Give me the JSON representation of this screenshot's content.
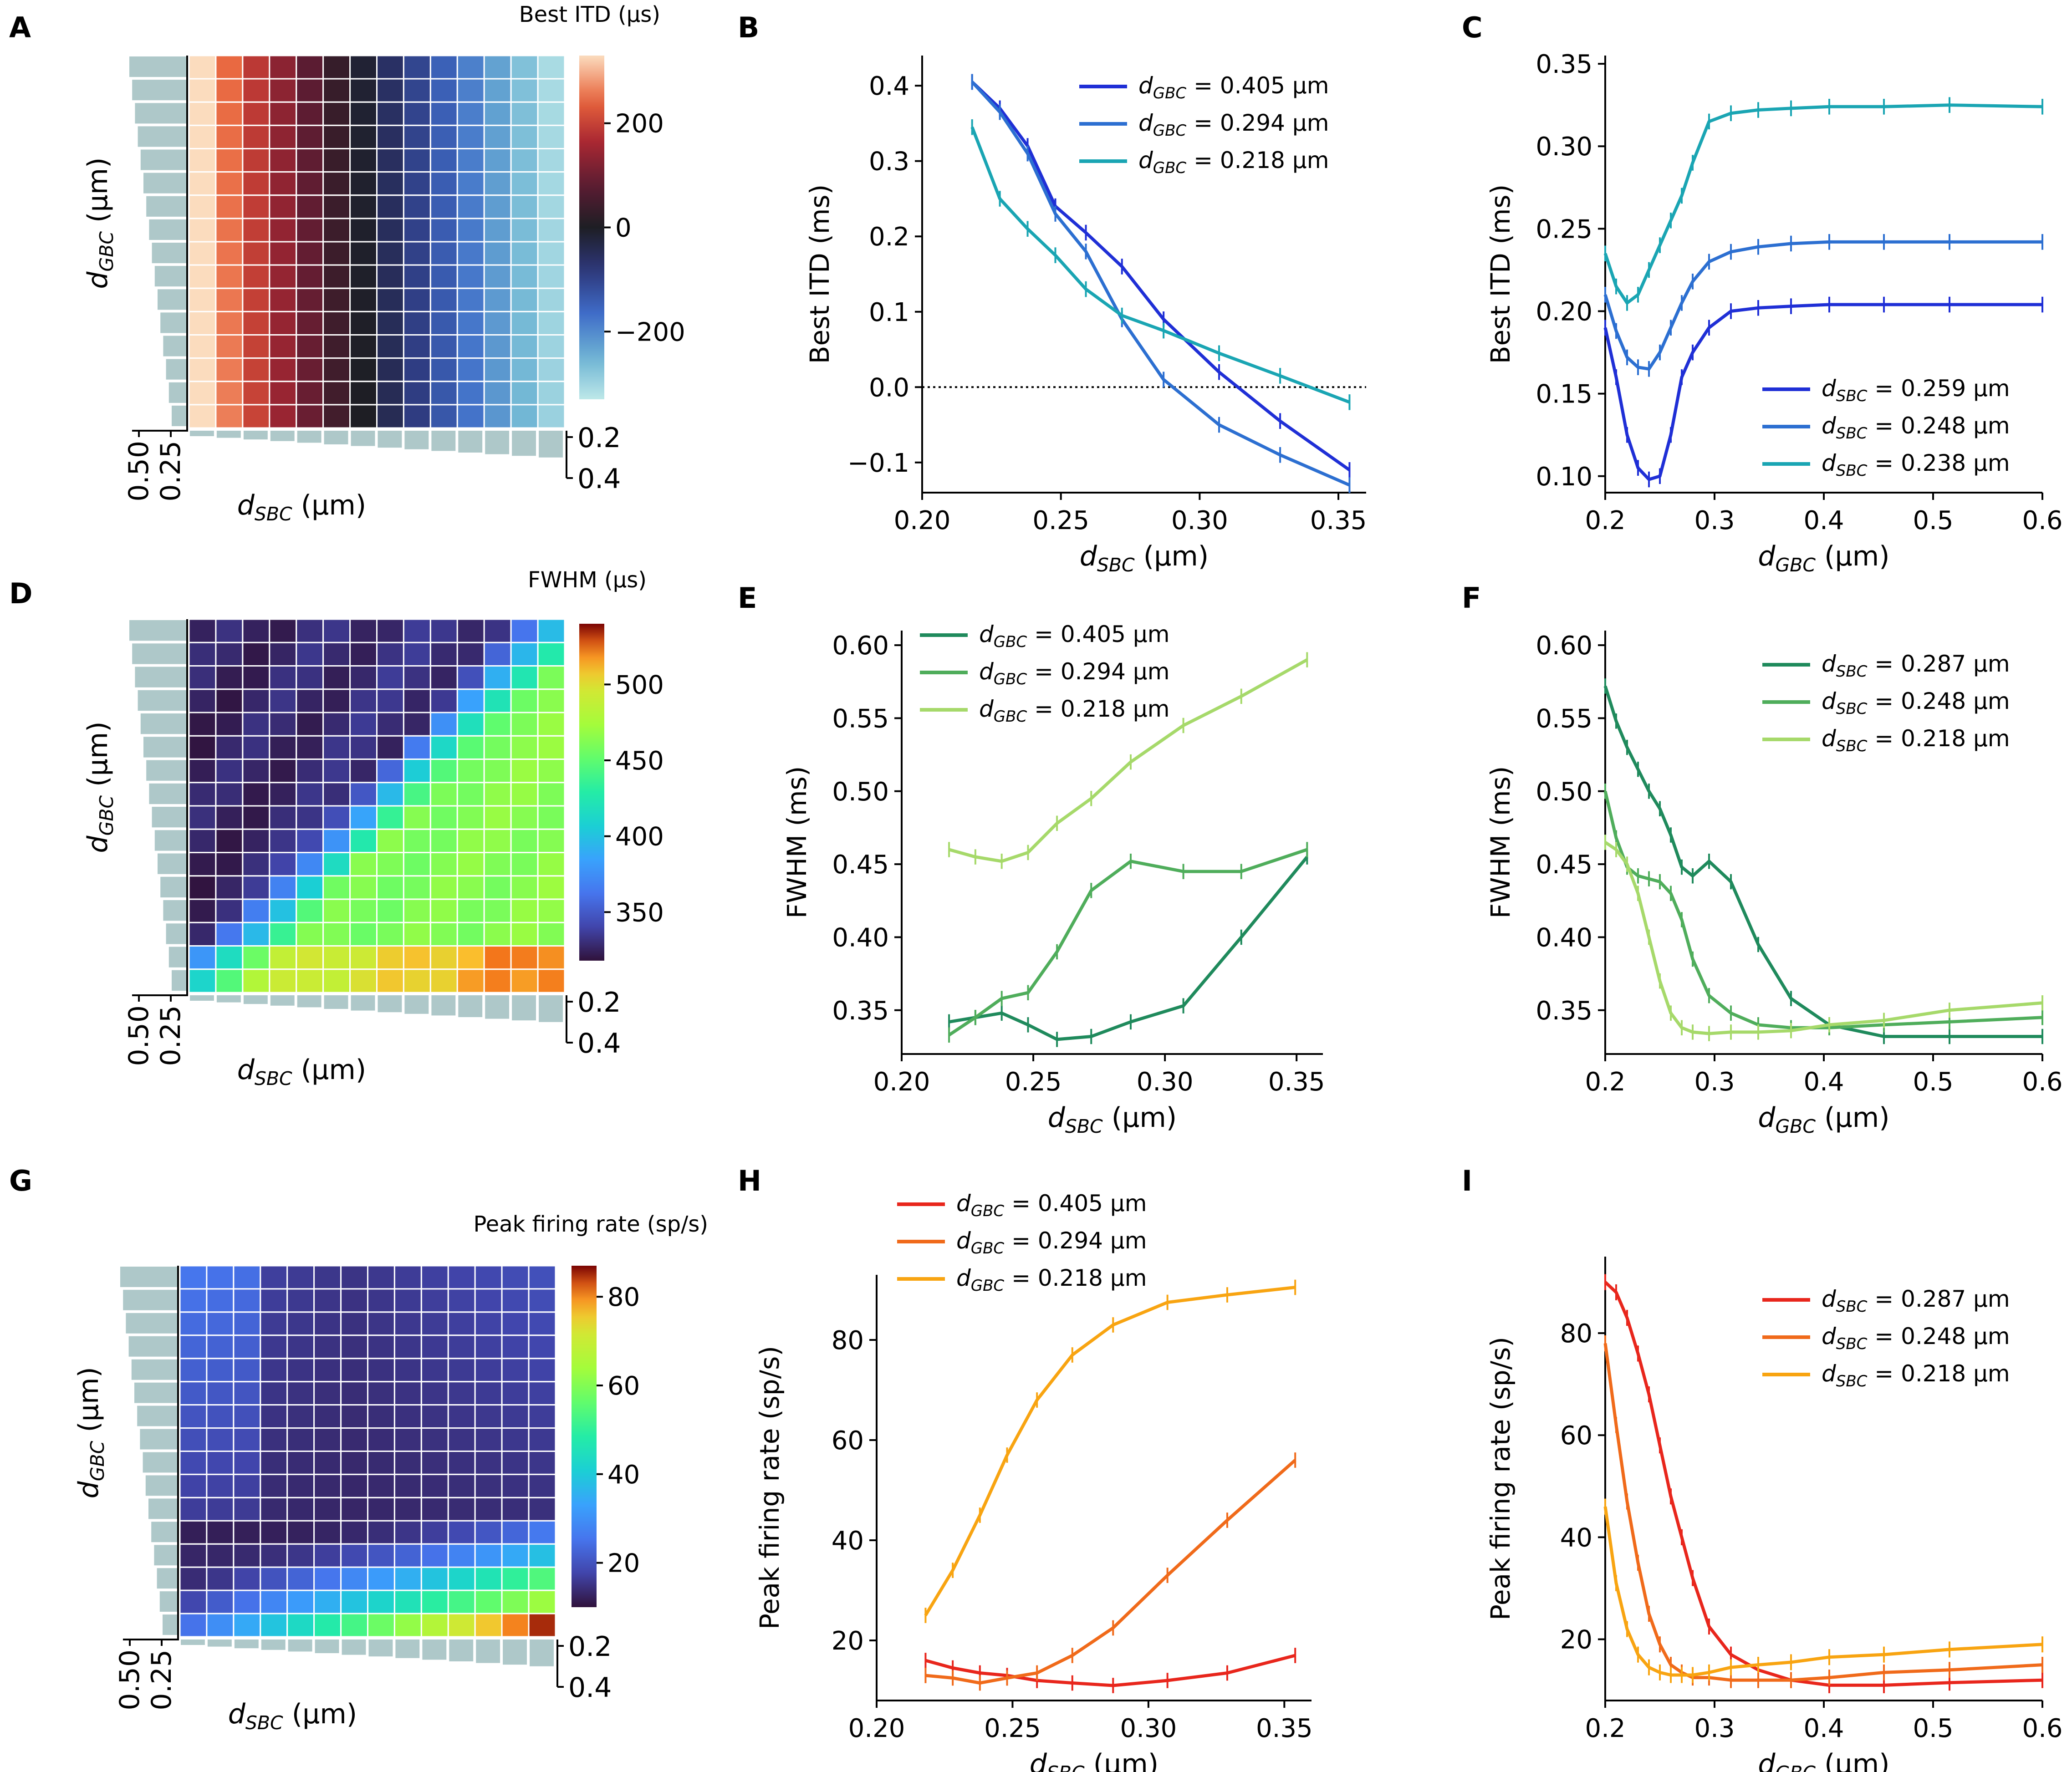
{
  "chart_data": [
    {
      "panel": "A",
      "type": "heatmap",
      "colorbar_title": "Best ITD (µs)",
      "colorbar_ticks": [
        200,
        0,
        -200
      ],
      "colorbar_tick_labels": [
        "200",
        "0",
        "−200"
      ],
      "vmin": -330,
      "vmax": 330,
      "colormap": "icefire",
      "nx": 14,
      "ny": 16,
      "ylabel_main": "d",
      "ylabel_sub": "GBC",
      "ylabel_unit": " (µm)",
      "xlabel_main": "d",
      "xlabel_sub": "SBC",
      "xlabel_unit": " (µm)",
      "side_ticks": [
        "0.2",
        "0.4"
      ],
      "top_ticks": [
        "0.50",
        "0.25"
      ]
    },
    {
      "panel": "B",
      "type": "line",
      "ylabel": "Best ITD (ms)",
      "xlabel_main": "d",
      "xlabel_sub": "SBC",
      "xlabel_unit": " (µm)",
      "xlim": [
        0.2,
        0.36
      ],
      "ylim": [
        -0.14,
        0.44
      ],
      "xticks": [
        0.2,
        0.25,
        0.3,
        0.35
      ],
      "xtick_labels": [
        "0.20",
        "0.25",
        "0.30",
        "0.35"
      ],
      "yticks": [
        -0.1,
        0.0,
        0.1,
        0.2,
        0.3,
        0.4
      ],
      "ytick_labels": [
        "−0.1",
        "0.0",
        "0.1",
        "0.2",
        "0.3",
        "0.4"
      ],
      "hline": 0,
      "legend_pos": "top-right",
      "series": [
        {
          "name": "d_GBC = 0.405 µm",
          "label_main": "d",
          "label_sub": "GBC",
          "label_rest": " = 0.405 µm",
          "color": "#1f2fd6",
          "x": [
            0.218,
            0.228,
            0.238,
            0.248,
            0.259,
            0.272,
            0.287,
            0.307,
            0.329,
            0.354
          ],
          "y": [
            0.405,
            0.37,
            0.32,
            0.24,
            0.205,
            0.16,
            0.09,
            0.02,
            -0.045,
            -0.11
          ]
        },
        {
          "name": "d_GBC = 0.294 µm",
          "label_main": "d",
          "label_sub": "GBC",
          "label_rest": " = 0.294 µm",
          "color": "#2c6fd1",
          "x": [
            0.218,
            0.228,
            0.238,
            0.248,
            0.259,
            0.272,
            0.287,
            0.307,
            0.329,
            0.354
          ],
          "y": [
            0.405,
            0.365,
            0.31,
            0.23,
            0.18,
            0.09,
            0.01,
            -0.05,
            -0.09,
            -0.13
          ]
        },
        {
          "name": "d_GBC = 0.218 µm",
          "label_main": "d",
          "label_sub": "GBC",
          "label_rest": " = 0.218 µm",
          "color": "#1aa5b3",
          "x": [
            0.218,
            0.228,
            0.238,
            0.248,
            0.259,
            0.272,
            0.287,
            0.307,
            0.329,
            0.354
          ],
          "y": [
            0.345,
            0.25,
            0.21,
            0.175,
            0.13,
            0.095,
            0.075,
            0.045,
            0.015,
            -0.02
          ]
        }
      ]
    },
    {
      "panel": "C",
      "type": "line",
      "ylabel": "Best ITD (ms)",
      "xlabel_main": "d",
      "xlabel_sub": "GBC",
      "xlabel_unit": " (µm)",
      "xlim": [
        0.2,
        0.6
      ],
      "ylim": [
        0.09,
        0.355
      ],
      "xticks": [
        0.2,
        0.3,
        0.4,
        0.5,
        0.6
      ],
      "xtick_labels": [
        "0.2",
        "0.3",
        "0.4",
        "0.5",
        "0.6"
      ],
      "yticks": [
        0.1,
        0.15,
        0.2,
        0.25,
        0.3,
        0.35
      ],
      "ytick_labels": [
        "0.10",
        "0.15",
        "0.20",
        "0.25",
        "0.30",
        "0.35"
      ],
      "legend_pos": "bottom-right",
      "series": [
        {
          "name": "d_SBC = 0.259 µm",
          "label_main": "d",
          "label_sub": "SBC",
          "label_rest": " = 0.259 µm",
          "color": "#1f2fd6",
          "x": [
            0.2,
            0.21,
            0.22,
            0.23,
            0.24,
            0.25,
            0.26,
            0.27,
            0.28,
            0.295,
            0.315,
            0.34,
            0.37,
            0.405,
            0.455,
            0.515,
            0.6
          ],
          "y": [
            0.19,
            0.16,
            0.125,
            0.105,
            0.098,
            0.1,
            0.125,
            0.16,
            0.175,
            0.19,
            0.2,
            0.202,
            0.203,
            0.204,
            0.204,
            0.204,
            0.204
          ]
        },
        {
          "name": "d_SBC = 0.248 µm",
          "label_main": "d",
          "label_sub": "SBC",
          "label_rest": " = 0.248 µm",
          "color": "#2c6fd1",
          "x": [
            0.2,
            0.21,
            0.22,
            0.23,
            0.24,
            0.25,
            0.26,
            0.27,
            0.28,
            0.295,
            0.315,
            0.34,
            0.37,
            0.405,
            0.455,
            0.515,
            0.6
          ],
          "y": [
            0.21,
            0.188,
            0.172,
            0.166,
            0.165,
            0.175,
            0.19,
            0.205,
            0.218,
            0.23,
            0.236,
            0.239,
            0.241,
            0.242,
            0.242,
            0.242,
            0.242
          ]
        },
        {
          "name": "d_SBC = 0.238 µm",
          "label_main": "d",
          "label_sub": "SBC",
          "label_rest": " = 0.238 µm",
          "color": "#1aa5b3",
          "x": [
            0.2,
            0.21,
            0.22,
            0.23,
            0.24,
            0.25,
            0.26,
            0.27,
            0.28,
            0.295,
            0.315,
            0.34,
            0.37,
            0.405,
            0.455,
            0.515,
            0.6
          ],
          "y": [
            0.235,
            0.215,
            0.205,
            0.21,
            0.225,
            0.24,
            0.255,
            0.27,
            0.29,
            0.315,
            0.32,
            0.322,
            0.323,
            0.324,
            0.324,
            0.325,
            0.324
          ]
        }
      ]
    },
    {
      "panel": "D",
      "type": "heatmap",
      "colorbar_title": "FWHM (µs)",
      "colorbar_ticks": [
        500,
        450,
        400,
        350
      ],
      "colorbar_tick_labels": [
        "500",
        "450",
        "400",
        "350"
      ],
      "vmin": 318,
      "vmax": 540,
      "colormap": "turbo",
      "nx": 14,
      "ny": 16,
      "ylabel_main": "d",
      "ylabel_sub": "GBC",
      "ylabel_unit": " (µm)",
      "xlabel_main": "d",
      "xlabel_sub": "SBC",
      "xlabel_unit": " (µm)",
      "side_ticks": [
        "0.2",
        "0.4"
      ],
      "top_ticks": [
        "0.50",
        "0.25"
      ]
    },
    {
      "panel": "E",
      "type": "line",
      "ylabel": "FWHM (ms)",
      "xlabel_main": "d",
      "xlabel_sub": "SBC",
      "xlabel_unit": " (µm)",
      "xlim": [
        0.2,
        0.36
      ],
      "ylim": [
        0.32,
        0.61
      ],
      "xticks": [
        0.2,
        0.25,
        0.3,
        0.35
      ],
      "xtick_labels": [
        "0.20",
        "0.25",
        "0.30",
        "0.35"
      ],
      "yticks": [
        0.35,
        0.4,
        0.45,
        0.5,
        0.55,
        0.6
      ],
      "ytick_labels": [
        "0.35",
        "0.40",
        "0.45",
        "0.50",
        "0.55",
        "0.60"
      ],
      "legend_pos": "top-left",
      "series": [
        {
          "name": "d_GBC = 0.405 µm",
          "label_main": "d",
          "label_sub": "GBC",
          "label_rest": " = 0.405 µm",
          "color": "#1f8a5c",
          "x": [
            0.218,
            0.228,
            0.238,
            0.248,
            0.259,
            0.272,
            0.287,
            0.307,
            0.329,
            0.354
          ],
          "y": [
            0.342,
            0.345,
            0.348,
            0.34,
            0.33,
            0.332,
            0.342,
            0.353,
            0.4,
            0.455
          ]
        },
        {
          "name": "d_GBC = 0.294 µm",
          "label_main": "d",
          "label_sub": "GBC",
          "label_rest": " = 0.294 µm",
          "color": "#4fad5b",
          "x": [
            0.218,
            0.228,
            0.238,
            0.248,
            0.259,
            0.272,
            0.287,
            0.307,
            0.329,
            0.354
          ],
          "y": [
            0.333,
            0.345,
            0.358,
            0.362,
            0.39,
            0.432,
            0.452,
            0.445,
            0.445,
            0.46
          ]
        },
        {
          "name": "d_GBC = 0.218 µm",
          "label_main": "d",
          "label_sub": "GBC",
          "label_rest": " = 0.218 µm",
          "color": "#a6d96a",
          "x": [
            0.218,
            0.228,
            0.238,
            0.248,
            0.259,
            0.272,
            0.287,
            0.307,
            0.329,
            0.354
          ],
          "y": [
            0.46,
            0.455,
            0.452,
            0.458,
            0.478,
            0.495,
            0.52,
            0.545,
            0.565,
            0.59
          ]
        }
      ]
    },
    {
      "panel": "F",
      "type": "line",
      "ylabel": "FWHM (ms)",
      "xlabel_main": "d",
      "xlabel_sub": "GBC",
      "xlabel_unit": " (µm)",
      "xlim": [
        0.2,
        0.6
      ],
      "ylim": [
        0.32,
        0.61
      ],
      "xticks": [
        0.2,
        0.3,
        0.4,
        0.5,
        0.6
      ],
      "xtick_labels": [
        "0.2",
        "0.3",
        "0.4",
        "0.5",
        "0.6"
      ],
      "yticks": [
        0.35,
        0.4,
        0.45,
        0.5,
        0.55,
        0.6
      ],
      "ytick_labels": [
        "0.35",
        "0.40",
        "0.45",
        "0.50",
        "0.55",
        "0.60"
      ],
      "legend_pos": "top-right",
      "series": [
        {
          "name": "d_SBC = 0.287 µm",
          "label_main": "d",
          "label_sub": "SBC",
          "label_rest": " = 0.287 µm",
          "color": "#1f8a5c",
          "x": [
            0.2,
            0.21,
            0.22,
            0.23,
            0.24,
            0.25,
            0.26,
            0.27,
            0.28,
            0.295,
            0.315,
            0.34,
            0.37,
            0.405,
            0.455,
            0.515,
            0.6
          ],
          "y": [
            0.572,
            0.548,
            0.53,
            0.515,
            0.5,
            0.488,
            0.47,
            0.448,
            0.442,
            0.452,
            0.438,
            0.395,
            0.358,
            0.34,
            0.332,
            0.332,
            0.332
          ]
        },
        {
          "name": "d_SBC = 0.248 µm",
          "label_main": "d",
          "label_sub": "SBC",
          "label_rest": " = 0.248 µm",
          "color": "#4fad5b",
          "x": [
            0.2,
            0.21,
            0.22,
            0.23,
            0.24,
            0.25,
            0.26,
            0.27,
            0.28,
            0.295,
            0.315,
            0.34,
            0.37,
            0.405,
            0.455,
            0.515,
            0.6
          ],
          "y": [
            0.5,
            0.468,
            0.448,
            0.442,
            0.44,
            0.438,
            0.43,
            0.412,
            0.385,
            0.36,
            0.348,
            0.34,
            0.338,
            0.338,
            0.34,
            0.342,
            0.345
          ]
        },
        {
          "name": "d_SBC = 0.218 µm",
          "label_main": "d",
          "label_sub": "SBC",
          "label_rest": " = 0.218 µm",
          "color": "#a6d96a",
          "x": [
            0.2,
            0.21,
            0.22,
            0.23,
            0.24,
            0.25,
            0.26,
            0.27,
            0.28,
            0.295,
            0.315,
            0.34,
            0.37,
            0.405,
            0.455,
            0.515,
            0.6
          ],
          "y": [
            0.465,
            0.46,
            0.45,
            0.43,
            0.4,
            0.37,
            0.348,
            0.338,
            0.335,
            0.334,
            0.335,
            0.335,
            0.336,
            0.34,
            0.343,
            0.35,
            0.355
          ]
        }
      ]
    },
    {
      "panel": "G",
      "type": "heatmap",
      "colorbar_title": "Peak firing rate (sp/s)",
      "colorbar_ticks": [
        80,
        60,
        40,
        20
      ],
      "colorbar_tick_labels": [
        "80",
        "60",
        "40",
        "20"
      ],
      "vmin": 10,
      "vmax": 87,
      "colormap": "turbo",
      "nx": 14,
      "ny": 16,
      "ylabel_main": "d",
      "ylabel_sub": "GBC",
      "ylabel_unit": " (µm)",
      "xlabel_main": "d",
      "xlabel_sub": "SBC",
      "xlabel_unit": " (µm)",
      "side_ticks": [
        "0.2",
        "0.4"
      ],
      "top_ticks": [
        "0.50",
        "0.25"
      ]
    },
    {
      "panel": "H",
      "type": "line",
      "ylabel": "Peak firing rate (sp/s)",
      "xlabel_main": "d",
      "xlabel_sub": "SBC",
      "xlabel_unit": " (µm)",
      "xlim": [
        0.2,
        0.36
      ],
      "ylim": [
        8,
        93
      ],
      "xticks": [
        0.2,
        0.25,
        0.3,
        0.35
      ],
      "xtick_labels": [
        "0.20",
        "0.25",
        "0.30",
        "0.35"
      ],
      "yticks": [
        20,
        40,
        60,
        80
      ],
      "ytick_labels": [
        "20",
        "40",
        "60",
        "80"
      ],
      "legend_pos": "above-left",
      "series": [
        {
          "name": "d_GBC = 0.405 µm",
          "label_main": "d",
          "label_sub": "GBC",
          "label_rest": " = 0.405 µm",
          "color": "#e8261c",
          "x": [
            0.218,
            0.228,
            0.238,
            0.248,
            0.259,
            0.272,
            0.287,
            0.307,
            0.329,
            0.354
          ],
          "y": [
            16,
            14.5,
            13.5,
            13,
            12,
            11.5,
            11,
            12,
            13.5,
            17
          ]
        },
        {
          "name": "d_GBC = 0.294 µm",
          "label_main": "d",
          "label_sub": "GBC",
          "label_rest": " = 0.294 µm",
          "color": "#f06a1a",
          "x": [
            0.218,
            0.228,
            0.238,
            0.248,
            0.259,
            0.272,
            0.287,
            0.307,
            0.329,
            0.354
          ],
          "y": [
            13,
            12.5,
            11.5,
            12.5,
            13.5,
            17,
            22.5,
            33,
            44,
            56
          ]
        },
        {
          "name": "d_GBC = 0.218 µm",
          "label_main": "d",
          "label_sub": "GBC",
          "label_rest": " = 0.218 µm",
          "color": "#f8a411",
          "x": [
            0.218,
            0.228,
            0.238,
            0.248,
            0.259,
            0.272,
            0.287,
            0.307,
            0.329,
            0.354
          ],
          "y": [
            25,
            34,
            45,
            57,
            68,
            77,
            83,
            87.5,
            89,
            90.5
          ]
        }
      ]
    },
    {
      "panel": "I",
      "type": "line",
      "ylabel": "Peak firing rate (sp/s)",
      "xlabel_main": "d",
      "xlabel_sub": "GBC",
      "xlabel_unit": " (µm)",
      "xlim": [
        0.2,
        0.6
      ],
      "ylim": [
        8,
        95
      ],
      "xticks": [
        0.2,
        0.3,
        0.4,
        0.5,
        0.6
      ],
      "xtick_labels": [
        "0.2",
        "0.3",
        "0.4",
        "0.5",
        "0.6"
      ],
      "yticks": [
        20,
        40,
        60,
        80
      ],
      "ytick_labels": [
        "20",
        "40",
        "60",
        "80"
      ],
      "legend_pos": "top-right",
      "series": [
        {
          "name": "d_SBC = 0.287 µm",
          "label_main": "d",
          "label_sub": "SBC",
          "label_rest": " = 0.287 µm",
          "color": "#e8261c",
          "x": [
            0.2,
            0.21,
            0.22,
            0.23,
            0.24,
            0.25,
            0.26,
            0.27,
            0.28,
            0.295,
            0.315,
            0.34,
            0.37,
            0.405,
            0.455,
            0.515,
            0.6
          ],
          "y": [
            90,
            88,
            83,
            76,
            68,
            58,
            48,
            40,
            32,
            22.5,
            17,
            14,
            12,
            11,
            11,
            11.5,
            12
          ]
        },
        {
          "name": "d_SBC = 0.248 µm",
          "label_main": "d",
          "label_sub": "SBC",
          "label_rest": " = 0.248 µm",
          "color": "#f06a1a",
          "x": [
            0.2,
            0.21,
            0.22,
            0.23,
            0.24,
            0.25,
            0.26,
            0.27,
            0.28,
            0.295,
            0.315,
            0.34,
            0.37,
            0.405,
            0.455,
            0.515,
            0.6
          ],
          "y": [
            78,
            62,
            47,
            35,
            25,
            19,
            15,
            13.5,
            12.5,
            12.5,
            12,
            12,
            12,
            12.5,
            13.5,
            14,
            15
          ]
        },
        {
          "name": "d_SBC = 0.218 µm",
          "label_main": "d",
          "label_sub": "SBC",
          "label_rest": " = 0.218 µm",
          "color": "#f8a411",
          "x": [
            0.2,
            0.21,
            0.22,
            0.23,
            0.24,
            0.25,
            0.26,
            0.27,
            0.28,
            0.295,
            0.315,
            0.34,
            0.37,
            0.405,
            0.455,
            0.515,
            0.6
          ],
          "y": [
            46,
            31,
            22,
            17,
            14.5,
            13.5,
            13,
            13,
            13,
            13.5,
            14.5,
            15,
            15.5,
            16.5,
            17,
            18,
            19
          ]
        }
      ]
    }
  ]
}
